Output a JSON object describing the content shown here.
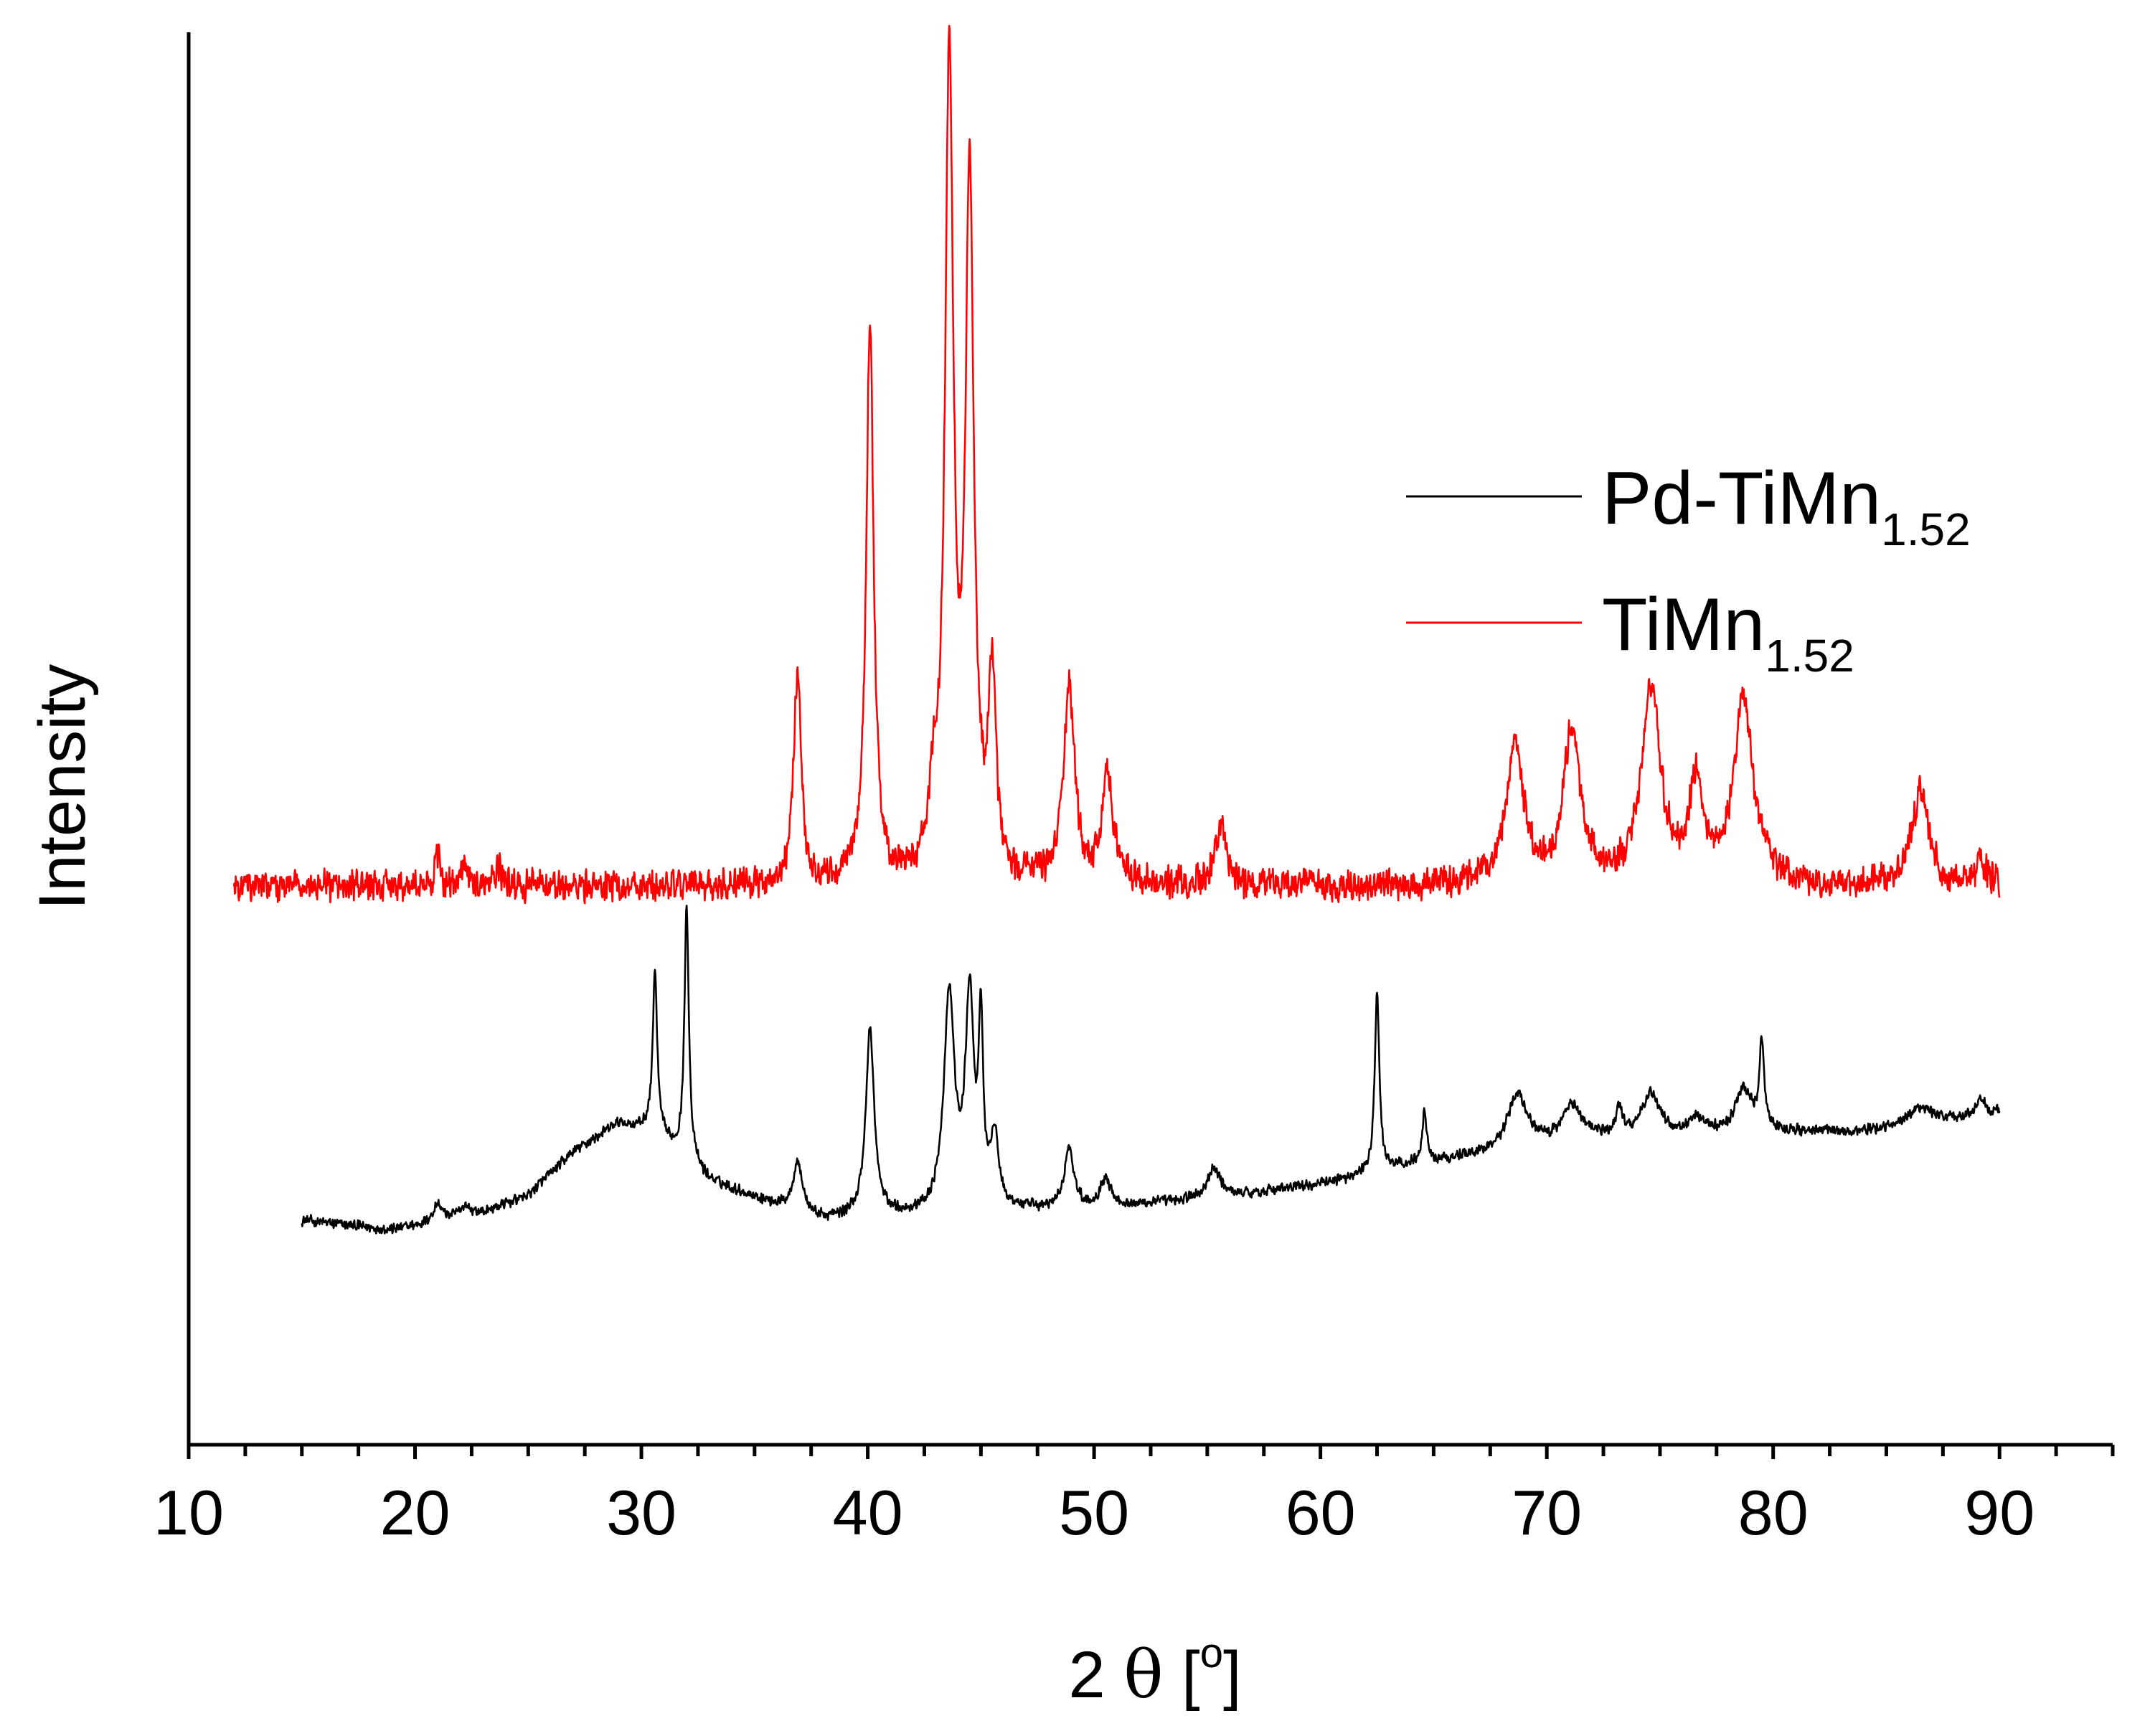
{
  "chart_data": {
    "type": "line",
    "title": "",
    "xlabel": {
      "prefix": "2 ",
      "symbol": "θ",
      "bracket_open": " [",
      "superscript": "o",
      "bracket_close": "]"
    },
    "ylabel": "Intensity",
    "xlim": [
      10,
      95
    ],
    "x_ticks": [
      10,
      20,
      30,
      40,
      50,
      60,
      70,
      80,
      90
    ],
    "x_tick_labels": [
      "10",
      "20",
      "30",
      "40",
      "50",
      "60",
      "70",
      "80",
      "90"
    ],
    "y_ticks_shown": false,
    "grid": false,
    "legend_position": "upper-right",
    "series": [
      {
        "name": "Pd-TiMn1.52",
        "label_main": "Pd-TiMn",
        "label_sub": "1.52",
        "color": "#000000",
        "x_range": [
          15,
          90
        ],
        "noise": 9,
        "baseline_points": [
          [
            15,
            235
          ],
          [
            17,
            228
          ],
          [
            19,
            222
          ],
          [
            21,
            232
          ],
          [
            23,
            245
          ],
          [
            25,
            270
          ],
          [
            27,
            330
          ],
          [
            29,
            370
          ],
          [
            30.5,
            360
          ],
          [
            33,
            290
          ],
          [
            36,
            255
          ],
          [
            38,
            235
          ],
          [
            40,
            240
          ],
          [
            42,
            240
          ],
          [
            46,
            248
          ],
          [
            50,
            250
          ],
          [
            54,
            262
          ],
          [
            56,
            268
          ],
          [
            60,
            285
          ],
          [
            64,
            312
          ],
          [
            68,
            330
          ],
          [
            72,
            348
          ],
          [
            76,
            350
          ],
          [
            80,
            358
          ],
          [
            84,
            358
          ],
          [
            88,
            375
          ],
          [
            90,
            385
          ]
        ],
        "peaks": [
          [
            21,
            25,
            0.25
          ],
          [
            22.2,
            15,
            0.3
          ],
          [
            30.6,
            220,
            0.12
          ],
          [
            32,
            350,
            0.12
          ],
          [
            36.9,
            70,
            0.25
          ],
          [
            40.1,
            260,
            0.22
          ],
          [
            43.6,
            300,
            0.28
          ],
          [
            44.5,
            290,
            0.22
          ],
          [
            45,
            240,
            0.12
          ],
          [
            45.6,
            100,
            0.2
          ],
          [
            48.9,
            85,
            0.25
          ],
          [
            50.5,
            40,
            0.3
          ],
          [
            55.3,
            40,
            0.35
          ],
          [
            62.5,
            250,
            0.12
          ],
          [
            64.6,
            70,
            0.12
          ],
          [
            68.7,
            80,
            0.5
          ],
          [
            71.1,
            50,
            0.5
          ],
          [
            73.2,
            40,
            0.15
          ],
          [
            74.6,
            60,
            0.5
          ],
          [
            76.6,
            25,
            0.4
          ],
          [
            78.7,
            60,
            0.45
          ],
          [
            79.5,
            120,
            0.12
          ],
          [
            86.5,
            25,
            0.6
          ],
          [
            89.2,
            25,
            0.2
          ]
        ]
      },
      {
        "name": "TiMn1.52",
        "label_main": "TiMn",
        "label_sub": "1.52",
        "color": "#ff0000",
        "x_range": [
          12,
          90
        ],
        "noise": 26,
        "baseline_points": [
          [
            12,
            700
          ],
          [
            90,
            700
          ]
        ],
        "peaks": [
          [
            21,
            40,
            0.15
          ],
          [
            22.2,
            35,
            0.15
          ],
          [
            23.7,
            25,
            0.15
          ],
          [
            36.9,
            300,
            0.2
          ],
          [
            40.1,
            780,
            0.2
          ],
          [
            42.9,
            95,
            0.2
          ],
          [
            43.6,
            1130,
            0.22
          ],
          [
            44.5,
            960,
            0.22
          ],
          [
            45.5,
            270,
            0.2
          ],
          [
            48.9,
            270,
            0.3
          ],
          [
            50.6,
            150,
            0.3
          ],
          [
            55.6,
            80,
            0.3
          ],
          [
            68.6,
            195,
            0.45
          ],
          [
            71.1,
            210,
            0.45
          ],
          [
            74.6,
            270,
            0.5
          ],
          [
            76.6,
            135,
            0.35
          ],
          [
            78.7,
            255,
            0.5
          ],
          [
            86.5,
            130,
            0.45
          ],
          [
            89.2,
            30,
            0.3
          ]
        ]
      }
    ]
  }
}
